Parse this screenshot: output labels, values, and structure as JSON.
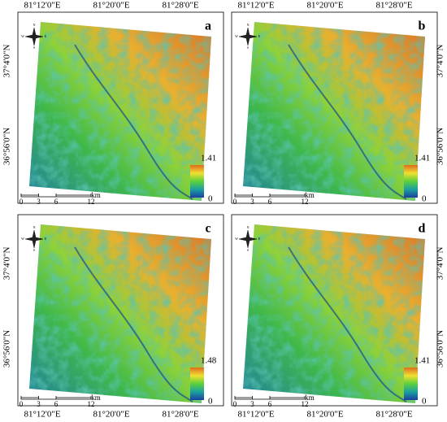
{
  "top_labels": [
    "81°12'0\"E",
    "81°20'0\"E",
    "81°28'0\"E"
  ],
  "left_labels": [
    "37°4'0\"N",
    "36°56'0\"N"
  ],
  "panels": [
    {
      "letter": "a",
      "legend_max": 1.41,
      "legend_min": 0
    },
    {
      "letter": "b",
      "legend_max": 1.41,
      "legend_min": 0
    },
    {
      "letter": "c",
      "legend_max": 1.48,
      "legend_min": 0
    },
    {
      "letter": "d",
      "legend_max": 1.41,
      "legend_min": 0
    }
  ],
  "scale": {
    "ticks": [
      0,
      3,
      6,
      12
    ],
    "unit": "km"
  },
  "compass": {
    "n": "N",
    "s": "S",
    "e": "E",
    "w": "W"
  }
}
